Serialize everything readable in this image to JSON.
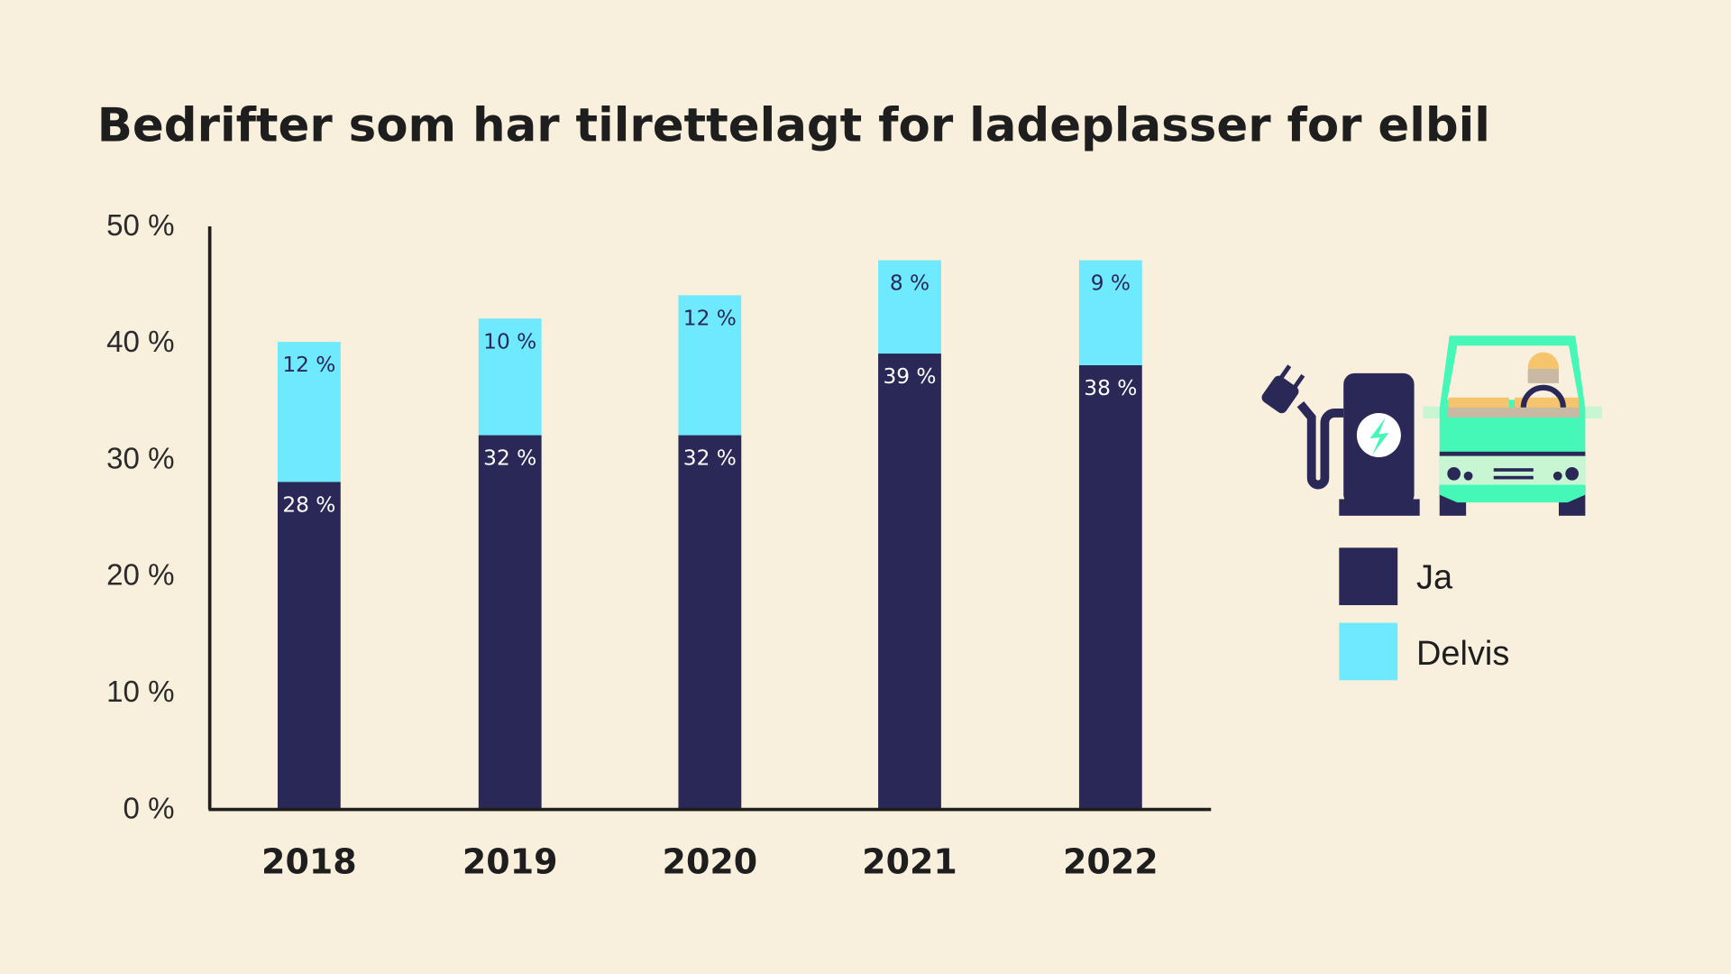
{
  "chart_data": {
    "type": "bar",
    "stacked": true,
    "title": "Bedrifter som har tilrettelagt for ladeplasser for elbil",
    "xlabel": "",
    "ylabel": "",
    "categories": [
      "2018",
      "2019",
      "2020",
      "2021",
      "2022"
    ],
    "series": [
      {
        "name": "Ja",
        "color": "#2a2857",
        "values": [
          28,
          32,
          32,
          39,
          38
        ],
        "labels": [
          "28 %",
          "32 %",
          "32 %",
          "39 %",
          "38 %"
        ]
      },
      {
        "name": "Delvis",
        "color": "#6ee9fd",
        "values": [
          12,
          10,
          12,
          8,
          9
        ],
        "labels": [
          "12 %",
          "10 %",
          "12 %",
          "8 %",
          "9 %"
        ]
      }
    ],
    "ylim": [
      0,
      50
    ],
    "yticks": [
      0,
      10,
      20,
      30,
      40,
      50
    ],
    "ytick_labels": [
      "0 %",
      "10 %",
      "20 %",
      "30 %",
      "40 %",
      "50 %"
    ],
    "grid": false,
    "legend_position": "right"
  },
  "colors": {
    "background": "#f8efdd",
    "ja": "#2a2857",
    "delvis": "#6ee9fd",
    "van": "#45f8b7"
  }
}
